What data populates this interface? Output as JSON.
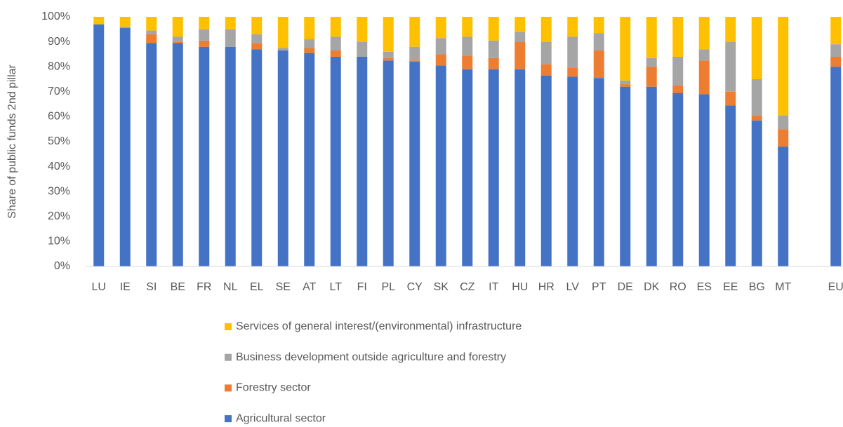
{
  "chart_data": {
    "type": "stacked_bar",
    "y_axis_label": "Share of public funds 2nd pillar",
    "categories": [
      "LU",
      "IE",
      "SI",
      "BE",
      "FR",
      "NL",
      "EL",
      "SE",
      "AT",
      "LT",
      "FI",
      "PL",
      "CY",
      "SK",
      "CZ",
      "IT",
      "HU",
      "HR",
      "LV",
      "PT",
      "DE",
      "DK",
      "RO",
      "ES",
      "EE",
      "BG",
      "MT",
      null,
      "EU"
    ],
    "series": [
      {
        "name": "Agricultural sector",
        "color": "#4472c4",
        "values": [
          97,
          95.5,
          89.5,
          89.5,
          88,
          88,
          87,
          86.5,
          85.5,
          84,
          84,
          82.5,
          82,
          80.5,
          79,
          79,
          79,
          76.5,
          76,
          75.5,
          72,
          72,
          69.5,
          69,
          64.5,
          58.5,
          48,
          null,
          80
        ]
      },
      {
        "name": "Forestry sector",
        "color": "#ed7d31",
        "values": [
          0,
          0,
          3.5,
          0.5,
          2.5,
          0,
          2.5,
          0,
          2,
          2.5,
          0,
          1,
          0.5,
          4.5,
          5.5,
          4.5,
          11,
          4.5,
          3.5,
          11,
          1,
          8,
          3,
          13.5,
          5.5,
          2,
          7,
          null,
          4
        ]
      },
      {
        "name": "Business development outside agriculture and forestry",
        "color": "#a5a5a5",
        "values": [
          0,
          0.5,
          1.5,
          2,
          4.5,
          7,
          3.5,
          1,
          3.5,
          5.5,
          6,
          2.5,
          5.5,
          6.5,
          7.5,
          7,
          4,
          9,
          12.5,
          7,
          1.5,
          3.5,
          11.5,
          4.5,
          20,
          14.5,
          5.5,
          null,
          5
        ]
      },
      {
        "name": "Services of general interest/(environmental) infrastructure",
        "color": "#ffc000",
        "values": [
          3,
          4,
          5.5,
          8,
          5,
          5,
          7,
          12.5,
          9,
          8,
          10,
          14,
          12,
          8.5,
          8,
          9.5,
          6,
          10,
          8,
          6.5,
          25.5,
          16.5,
          16,
          13,
          10,
          25,
          39.5,
          null,
          11
        ]
      }
    ],
    "ylim": [
      0,
      100
    ],
    "yticks": [
      {
        "value": 0,
        "label": "0%"
      },
      {
        "value": 10,
        "label": "10%"
      },
      {
        "value": 20,
        "label": "20%"
      },
      {
        "value": 30,
        "label": "30%"
      },
      {
        "value": 40,
        "label": "40%"
      },
      {
        "value": 50,
        "label": "50%"
      },
      {
        "value": 60,
        "label": "60%"
      },
      {
        "value": 70,
        "label": "70%"
      },
      {
        "value": 80,
        "label": "80%"
      },
      {
        "value": 90,
        "label": "90%"
      },
      {
        "value": 100,
        "label": "100%"
      }
    ],
    "grid": false,
    "legend": "bottom"
  }
}
